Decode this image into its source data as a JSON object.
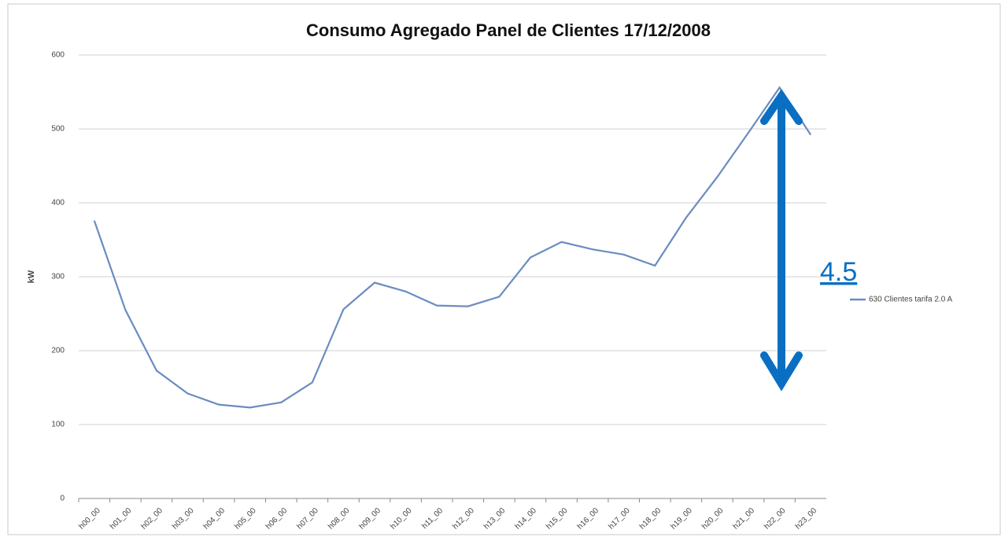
{
  "chart_data": {
    "type": "line",
    "title": "Consumo Agregado Panel de Clientes 17/12/2008",
    "y_label": "kW",
    "annotation": "4.5",
    "categories": [
      "h00_00",
      "h01_00",
      "h02_00",
      "h03_00",
      "h04_00",
      "h05_00",
      "h06_00",
      "h07_00",
      "h08_00",
      "h09_00",
      "h10_00",
      "h11_00",
      "h12_00",
      "h13_00",
      "h14_00",
      "h15_00",
      "h16_00",
      "h17_00",
      "h18_00",
      "h19_00",
      "h20_00",
      "h21_00",
      "h22_00",
      "h23_00"
    ],
    "series": [
      {
        "name": "630 Clientes tarifa 2.0 A",
        "color": "#6a8cc0",
        "values": [
          376,
          255,
          173,
          142,
          127,
          123,
          130,
          157,
          256,
          292,
          280,
          261,
          260,
          273,
          326,
          347,
          337,
          330,
          315,
          380,
          435,
          495,
          556,
          492
        ]
      }
    ],
    "ylim": [
      0,
      600
    ],
    "yticks": [
      0,
      100,
      200,
      300,
      400,
      500,
      600
    ],
    "grid": true,
    "legend": "right"
  }
}
